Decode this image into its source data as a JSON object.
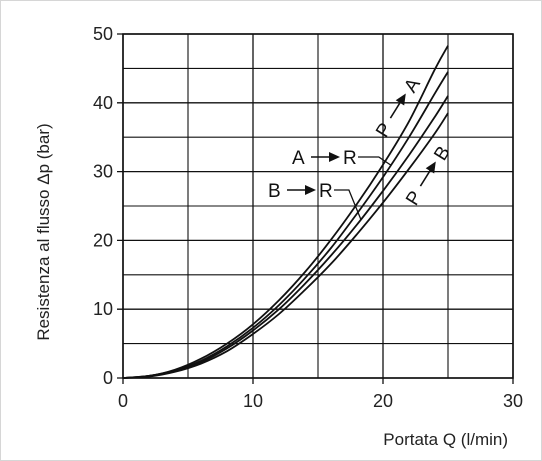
{
  "chart_data": {
    "type": "line",
    "title": "",
    "xlabel": "Portata Q (l/min)",
    "ylabel": "Resistenza al flusso Δp (bar)",
    "xlim": [
      0,
      30
    ],
    "ylim": [
      0,
      50
    ],
    "x_ticks": [
      0,
      10,
      20,
      30
    ],
    "y_ticks": [
      0,
      10,
      20,
      30,
      40,
      50
    ],
    "grid": true,
    "grid_minor": true,
    "series": [
      {
        "name": "P → A",
        "x": [
          0,
          2,
          4,
          6,
          8,
          10,
          12,
          14,
          16,
          18,
          20,
          22,
          24,
          25
        ],
        "y": [
          0,
          0.3,
          1.2,
          2.8,
          5.0,
          7.8,
          11.3,
          15.4,
          20.1,
          25.3,
          31.0,
          37.3,
          44.9,
          48.3
        ]
      },
      {
        "name": "A → R",
        "x": [
          0,
          2,
          4,
          6,
          8,
          10,
          12,
          14,
          16,
          18,
          20,
          22,
          24,
          25
        ],
        "y": [
          0,
          0.3,
          1.1,
          2.5,
          4.6,
          7.3,
          10.6,
          14.5,
          18.9,
          23.9,
          29.2,
          35.0,
          41.4,
          44.5
        ]
      },
      {
        "name": "B → R",
        "x": [
          0,
          2,
          4,
          6,
          8,
          10,
          12,
          14,
          16,
          18,
          20,
          22,
          24,
          25
        ],
        "y": [
          0,
          0.3,
          1.0,
          2.3,
          4.3,
          6.9,
          10.0,
          13.7,
          17.8,
          22.3,
          27.2,
          32.4,
          38.0,
          41.0
        ]
      },
      {
        "name": "P → B",
        "x": [
          0,
          2,
          4,
          6,
          8,
          10,
          12,
          14,
          16,
          18,
          20,
          22,
          24,
          25
        ],
        "y": [
          0,
          0.2,
          0.9,
          2.1,
          3.9,
          6.4,
          9.3,
          12.8,
          16.6,
          20.9,
          25.5,
          30.4,
          35.6,
          38.5
        ]
      }
    ],
    "annotations": [
      {
        "from": "P",
        "to": "A"
      },
      {
        "from": "A",
        "to": "R"
      },
      {
        "from": "B",
        "to": "R"
      },
      {
        "from": "P",
        "to": "B"
      }
    ]
  }
}
